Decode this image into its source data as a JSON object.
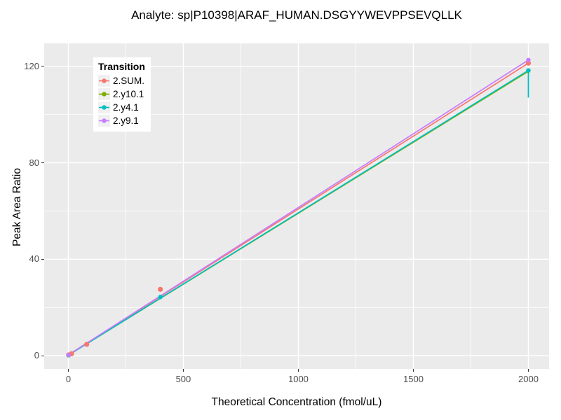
{
  "chart_data": {
    "type": "scatter",
    "title": "Analyte: sp|P10398|ARAF_HUMAN.DSGYYWEVPPSEVQLLK",
    "xlabel": "Theoretical Concentration (fmol/uL)",
    "ylabel": "Peak Area Ratio",
    "xlim": [
      -105,
      2090
    ],
    "ylim": [
      -5.5,
      129.5
    ],
    "x_major_ticks": [
      0,
      500,
      1000,
      1500,
      2000
    ],
    "x_minor_ticks": [
      250,
      750,
      1250,
      1750
    ],
    "y_major_ticks": [
      0,
      40,
      80,
      120
    ],
    "y_minor_ticks": [
      20,
      60,
      100
    ],
    "grid": "on",
    "legend_position": "inside-top-left",
    "legend_title": "Transition",
    "colors": {
      "panel_background": "#EBEBEB",
      "grid_line": "#FFFFFF",
      "tick_text": "#4D4D4D",
      "legend_key_background": "#F0F0F0"
    },
    "series": [
      {
        "name": "2.SUM.",
        "color": "#F8766D",
        "line": {
          "x": [
            0,
            2000
          ],
          "y": [
            0.3,
            121.3
          ]
        },
        "points": [
          [
            1,
            0.3
          ],
          [
            14,
            0.8
          ],
          [
            80,
            4.7
          ],
          [
            400,
            27.5
          ],
          [
            2000,
            121.3
          ]
        ]
      },
      {
        "name": "2.y10.1",
        "color": "#7CAE00",
        "line": {
          "x": [
            0,
            2000
          ],
          "y": [
            0.2,
            117.9
          ]
        },
        "points": [
          [
            1,
            0.2
          ],
          [
            2000,
            118.2
          ]
        ]
      },
      {
        "name": "2.y4.1",
        "color": "#00BFC4",
        "line": {
          "x": [
            0,
            2000
          ],
          "y": [
            0.2,
            118.3
          ]
        },
        "points": [
          [
            1,
            0.2
          ],
          [
            400,
            24.3
          ],
          [
            2000,
            118.3
          ]
        ],
        "error_bar": {
          "x": 2000,
          "y_low": 107.0,
          "y_high": 118.3
        }
      },
      {
        "name": "2.y9.1",
        "color": "#C77CFF",
        "line": {
          "x": [
            0,
            2000
          ],
          "y": [
            0.3,
            122.6
          ]
        },
        "points": [
          [
            1,
            0.3
          ],
          [
            2000,
            122.6
          ]
        ]
      }
    ]
  }
}
